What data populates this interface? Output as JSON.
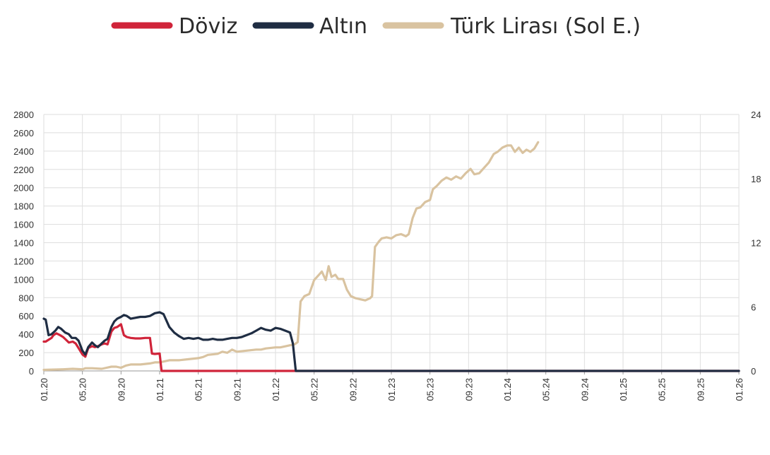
{
  "chart_data": {
    "type": "line",
    "legend_position": "top",
    "grid": true,
    "x_ticks": [
      "01.20",
      "05.20",
      "09.20",
      "01.21",
      "05.21",
      "09.21",
      "01.22",
      "05.22",
      "09.22",
      "01.23",
      "05.23",
      "09.23",
      "01.24",
      "05.24",
      "09.24",
      "01.25",
      "05.25",
      "09.25",
      "01.26"
    ],
    "y_left": {
      "ticks": [
        "0",
        "200",
        "400",
        "600",
        "800",
        "1000",
        "1200",
        "1400",
        "1600",
        "1800",
        "2000",
        "2200",
        "2400",
        "2600",
        "2800"
      ],
      "min": 0,
      "max": 2800
    },
    "y_right": {
      "ticks": [
        "0",
        "6",
        "12",
        "18",
        "24"
      ],
      "min": 0,
      "max": 24
    },
    "series": [
      {
        "name": "Döviz",
        "color": "#d0243a",
        "axis": "left",
        "points": [
          [
            0,
            320
          ],
          [
            0.2,
            320
          ],
          [
            0.5,
            340
          ],
          [
            0.8,
            360
          ],
          [
            1,
            390
          ],
          [
            1.3,
            410
          ],
          [
            1.6,
            395
          ],
          [
            2,
            370
          ],
          [
            2.3,
            340
          ],
          [
            2.6,
            310
          ],
          [
            3,
            320
          ],
          [
            3.3,
            300
          ],
          [
            3.6,
            250
          ],
          [
            4,
            180
          ],
          [
            4.3,
            155
          ],
          [
            4.6,
            250
          ],
          [
            5,
            270
          ],
          [
            5.3,
            260
          ],
          [
            5.6,
            270
          ],
          [
            6,
            290
          ],
          [
            6.3,
            300
          ],
          [
            6.6,
            290
          ],
          [
            7,
            430
          ],
          [
            7.3,
            470
          ],
          [
            7.6,
            480
          ],
          [
            8,
            510
          ],
          [
            8.3,
            390
          ],
          [
            8.6,
            370
          ],
          [
            9,
            360
          ],
          [
            9.5,
            355
          ],
          [
            10,
            355
          ],
          [
            10.5,
            360
          ],
          [
            11,
            360
          ],
          [
            11.2,
            190
          ],
          [
            11.5,
            185
          ],
          [
            12,
            190
          ],
          [
            12.2,
            0
          ],
          [
            40,
            0
          ],
          [
            60,
            0
          ],
          [
            72,
            0
          ]
        ]
      },
      {
        "name": "Altın",
        "color": "#1f2d43",
        "axis": "left",
        "points": [
          [
            0,
            570
          ],
          [
            0.2,
            560
          ],
          [
            0.5,
            390
          ],
          [
            0.8,
            400
          ],
          [
            1.2,
            440
          ],
          [
            1.5,
            480
          ],
          [
            1.8,
            460
          ],
          [
            2.2,
            420
          ],
          [
            2.6,
            400
          ],
          [
            2.9,
            360
          ],
          [
            3.3,
            360
          ],
          [
            3.6,
            330
          ],
          [
            4,
            220
          ],
          [
            4.3,
            180
          ],
          [
            4.6,
            260
          ],
          [
            5,
            310
          ],
          [
            5.3,
            280
          ],
          [
            5.6,
            260
          ],
          [
            6,
            300
          ],
          [
            6.3,
            330
          ],
          [
            6.6,
            350
          ],
          [
            7,
            480
          ],
          [
            7.3,
            540
          ],
          [
            7.6,
            570
          ],
          [
            8,
            590
          ],
          [
            8.3,
            610
          ],
          [
            8.6,
            600
          ],
          [
            9,
            570
          ],
          [
            9.5,
            580
          ],
          [
            10,
            590
          ],
          [
            10.5,
            590
          ],
          [
            11,
            600
          ],
          [
            11.5,
            630
          ],
          [
            12,
            640
          ],
          [
            12.4,
            620
          ],
          [
            13,
            480
          ],
          [
            13.5,
            420
          ],
          [
            14,
            380
          ],
          [
            14.5,
            350
          ],
          [
            15,
            360
          ],
          [
            15.5,
            350
          ],
          [
            16,
            360
          ],
          [
            16.5,
            340
          ],
          [
            17,
            340
          ],
          [
            17.5,
            350
          ],
          [
            18,
            340
          ],
          [
            18.5,
            340
          ],
          [
            19,
            350
          ],
          [
            19.5,
            360
          ],
          [
            20,
            360
          ],
          [
            20.5,
            370
          ],
          [
            21,
            390
          ],
          [
            21.5,
            410
          ],
          [
            22,
            440
          ],
          [
            22.5,
            470
          ],
          [
            23,
            450
          ],
          [
            23.5,
            440
          ],
          [
            24,
            470
          ],
          [
            24.5,
            460
          ],
          [
            25,
            440
          ],
          [
            25.5,
            420
          ],
          [
            25.8,
            300
          ],
          [
            26.1,
            0
          ],
          [
            40,
            0
          ],
          [
            60,
            0
          ],
          [
            72,
            0
          ]
        ]
      },
      {
        "name": "Türk Lirası (Sol E.)",
        "color": "#d9c3a0",
        "axis": "right",
        "points": [
          [
            0,
            0.1
          ],
          [
            2,
            0.15
          ],
          [
            3,
            0.2
          ],
          [
            4,
            0.15
          ],
          [
            4.3,
            0.25
          ],
          [
            5,
            0.25
          ],
          [
            6,
            0.2
          ],
          [
            6.5,
            0.3
          ],
          [
            7,
            0.4
          ],
          [
            7.5,
            0.4
          ],
          [
            8,
            0.3
          ],
          [
            8.5,
            0.5
          ],
          [
            9,
            0.6
          ],
          [
            10,
            0.6
          ],
          [
            11,
            0.7
          ],
          [
            11.5,
            0.8
          ],
          [
            12,
            0.8
          ],
          [
            12.5,
            0.9
          ],
          [
            13,
            1.0
          ],
          [
            14,
            1.0
          ],
          [
            15,
            1.1
          ],
          [
            16,
            1.2
          ],
          [
            16.5,
            1.3
          ],
          [
            17,
            1.5
          ],
          [
            18,
            1.6
          ],
          [
            18.5,
            1.8
          ],
          [
            19,
            1.7
          ],
          [
            19.5,
            2.0
          ],
          [
            20,
            1.8
          ],
          [
            21,
            1.9
          ],
          [
            22,
            2.0
          ],
          [
            22.5,
            2.0
          ],
          [
            23,
            2.1
          ],
          [
            24,
            2.2
          ],
          [
            24.5,
            2.2
          ],
          [
            25,
            2.3
          ],
          [
            25.5,
            2.4
          ],
          [
            26,
            2.5
          ],
          [
            26.3,
            2.7
          ],
          [
            26.6,
            6.5
          ],
          [
            27,
            7.0
          ],
          [
            27.5,
            7.2
          ],
          [
            28,
            8.5
          ],
          [
            28.5,
            9.0
          ],
          [
            28.8,
            9.3
          ],
          [
            29.2,
            8.5
          ],
          [
            29.5,
            9.8
          ],
          [
            29.8,
            8.8
          ],
          [
            30.2,
            9.0
          ],
          [
            30.5,
            8.6
          ],
          [
            31,
            8.6
          ],
          [
            31.4,
            7.6
          ],
          [
            31.8,
            7.0
          ],
          [
            32.3,
            6.8
          ],
          [
            32.8,
            6.7
          ],
          [
            33.3,
            6.6
          ],
          [
            33.8,
            6.8
          ],
          [
            34,
            7.0
          ],
          [
            34.3,
            11.6
          ],
          [
            34.7,
            12.1
          ],
          [
            35,
            12.4
          ],
          [
            35.5,
            12.5
          ],
          [
            36,
            12.4
          ],
          [
            36.5,
            12.7
          ],
          [
            37,
            12.8
          ],
          [
            37.5,
            12.6
          ],
          [
            37.8,
            12.8
          ],
          [
            38.2,
            14.3
          ],
          [
            38.6,
            15.2
          ],
          [
            39,
            15.3
          ],
          [
            39.5,
            15.8
          ],
          [
            40,
            16.0
          ],
          [
            40.3,
            17.0
          ],
          [
            40.7,
            17.3
          ],
          [
            41.2,
            17.8
          ],
          [
            41.7,
            18.1
          ],
          [
            42.2,
            17.9
          ],
          [
            42.7,
            18.2
          ],
          [
            43.2,
            18.0
          ],
          [
            43.7,
            18.5
          ],
          [
            44.2,
            18.9
          ],
          [
            44.6,
            18.4
          ],
          [
            45.1,
            18.5
          ],
          [
            45.6,
            19.0
          ],
          [
            46.1,
            19.5
          ],
          [
            46.6,
            20.3
          ],
          [
            47,
            20.5
          ],
          [
            47.5,
            20.9
          ],
          [
            48,
            21.1
          ],
          [
            48.4,
            21.1
          ],
          [
            48.8,
            20.5
          ],
          [
            49.2,
            20.9
          ],
          [
            49.6,
            20.4
          ],
          [
            50,
            20.7
          ],
          [
            50.4,
            20.5
          ],
          [
            50.8,
            20.8
          ],
          [
            51.2,
            21.4
          ]
        ]
      }
    ]
  }
}
